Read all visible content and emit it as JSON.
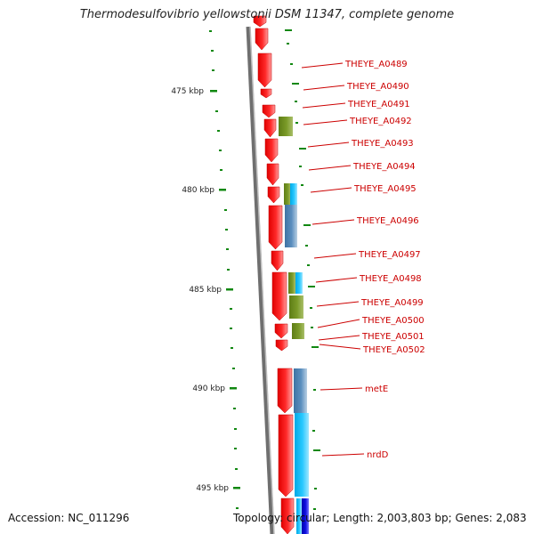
{
  "title": "Thermodesulfovibrio yellowstonii DSM 11347, complete genome",
  "footer": {
    "accession": "Accession: NC_011296",
    "topology": "Topology: circular",
    "length": "Length: 2,003,803 bp",
    "genes": "Genes: 2,083",
    "separator": "; "
  },
  "scale_labels": [
    "475 kbp",
    "480 kbp",
    "485 kbp",
    "490 kbp",
    "495 kbp"
  ],
  "gene_labels": [
    "THEYE_A0489",
    "THEYE_A0490",
    "THEYE_A0491",
    "THEYE_A0492",
    "THEYE_A0493",
    "THEYE_A0494",
    "THEYE_A0495",
    "THEYE_A0496",
    "THEYE_A0497",
    "THEYE_A0498",
    "THEYE_A0499",
    "THEYE_A0500",
    "THEYE_A0501",
    "THEYE_A0502",
    "metE",
    "nrdD"
  ],
  "colors": {
    "cds": "#ff0000",
    "backbone": "#888888",
    "tick": "#118811",
    "label": "#cc0000",
    "cog_green": "#6b8e23",
    "cog_blue": "#4682b4",
    "cog_cyan": "#00bfff",
    "cog_dark_blue": "#0000cd"
  }
}
